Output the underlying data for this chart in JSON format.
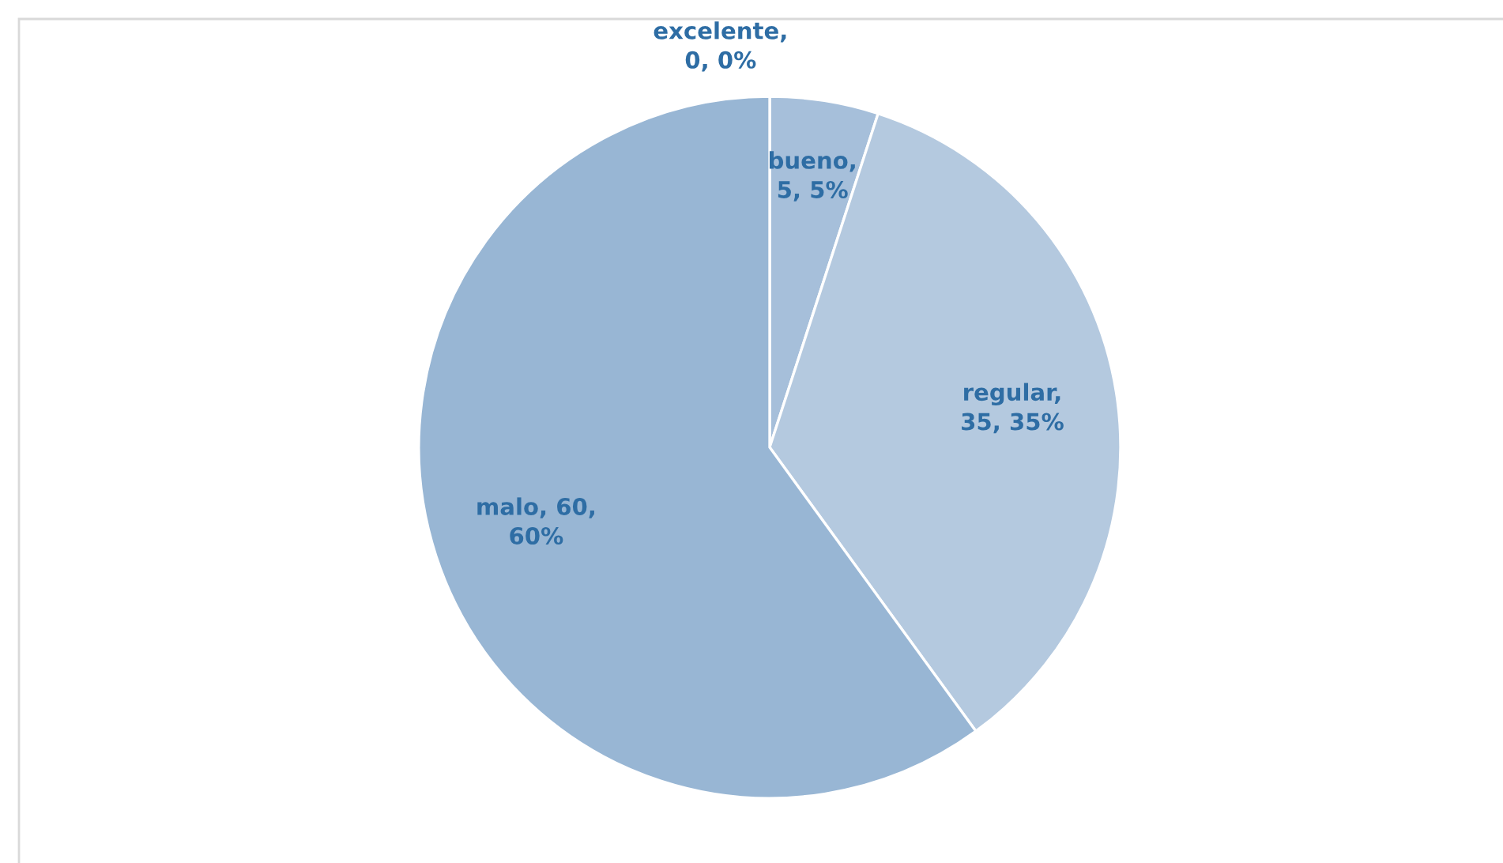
{
  "chart_data": {
    "type": "pie",
    "categories": [
      "excelente",
      "bueno",
      "regular",
      "malo"
    ],
    "values": [
      0,
      5,
      35,
      60
    ],
    "colors": [
      "#a9c1dc",
      "#a6bfda",
      "#b4c9df",
      "#98b6d4"
    ],
    "value_labels": [
      ", 0, 0%",
      ", 5, 5%",
      ", 35, 35%",
      ", 60, 60%"
    ]
  }
}
